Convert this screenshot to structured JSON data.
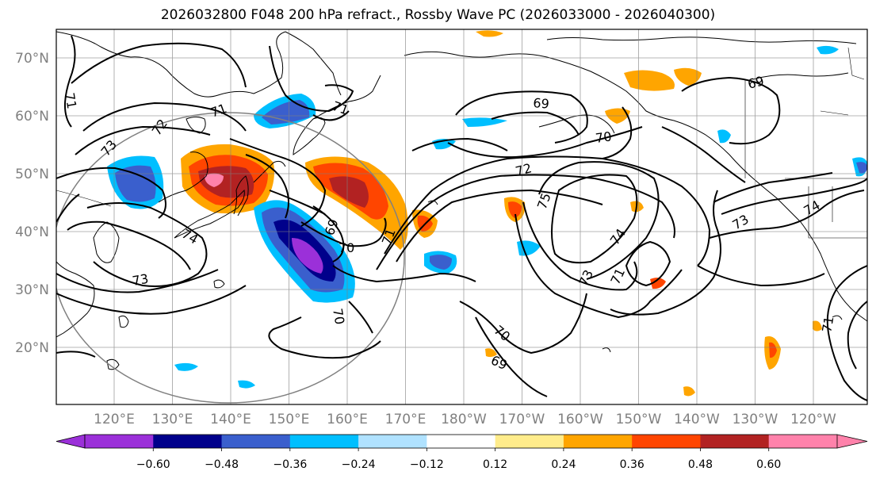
{
  "title": "2026032800 F048 200 hPa refract., Rossby Wave PC (2026033000 - 2026040300)",
  "map": {
    "lat_labels": [
      "70°N",
      "60°N",
      "50°N",
      "40°N",
      "30°N",
      "20°N"
    ],
    "lon_labels": [
      "120°E",
      "130°E",
      "140°E",
      "150°E",
      "160°E",
      "170°E",
      "180°W",
      "170°W",
      "160°W",
      "150°W",
      "140°W",
      "130°W",
      "120°W"
    ],
    "contour_labels": [
      "71",
      "72",
      "73",
      "74",
      "73",
      "71",
      "71",
      "69",
      "70",
      "71",
      "69",
      "69",
      "70",
      "72",
      "75",
      "74",
      "73",
      "71",
      "73",
      "74",
      "70",
      "69",
      "71",
      "70"
    ]
  },
  "colorbar": {
    "colors": [
      "#9b30d9",
      "#00008b",
      "#3a5fcd",
      "#00bfff",
      "#b0e2ff",
      "#ffffff",
      "#ffec8b",
      "#ffa500",
      "#ff4500",
      "#b22222",
      "#ff82ab"
    ],
    "under_color": "#9b30d9",
    "over_color": "#ff82ab",
    "tick_labels": [
      "−0.60",
      "−0.48",
      "−0.36",
      "−0.24",
      "−0.12",
      "0.12",
      "0.24",
      "0.36",
      "0.48",
      "0.60"
    ]
  }
}
